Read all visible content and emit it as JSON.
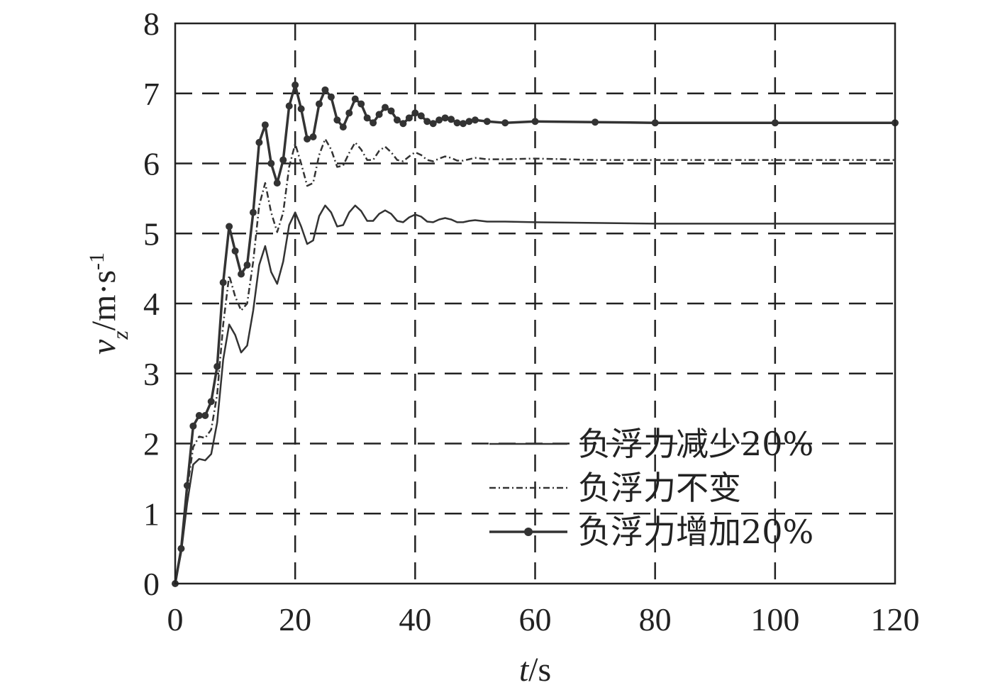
{
  "chart_data": {
    "type": "line",
    "xlabel": {
      "var": "t",
      "unit": "/s"
    },
    "ylabel": {
      "var": "v",
      "sub": "z",
      "unit": "/m·s",
      "sup": "-1"
    },
    "xlim": [
      0,
      120
    ],
    "ylim": [
      0,
      8
    ],
    "xticks": [
      0,
      20,
      40,
      60,
      80,
      100,
      120
    ],
    "yticks": [
      0,
      1,
      2,
      3,
      4,
      5,
      6,
      7,
      8
    ],
    "grid": true,
    "legend_position": "bottom-right",
    "color": "#333333",
    "series": [
      {
        "name": "负浮力减少20%",
        "style": "solid",
        "points": [
          [
            0,
            0
          ],
          [
            1,
            0.45
          ],
          [
            2,
            1.15
          ],
          [
            3,
            1.7
          ],
          [
            4,
            1.78
          ],
          [
            5,
            1.76
          ],
          [
            6,
            1.85
          ],
          [
            7,
            2.3
          ],
          [
            8,
            3.2
          ],
          [
            9,
            3.7
          ],
          [
            10,
            3.55
          ],
          [
            11,
            3.3
          ],
          [
            12,
            3.4
          ],
          [
            13,
            3.9
          ],
          [
            14,
            4.55
          ],
          [
            15,
            4.82
          ],
          [
            16,
            4.45
          ],
          [
            17,
            4.28
          ],
          [
            18,
            4.6
          ],
          [
            19,
            5.12
          ],
          [
            20,
            5.3
          ],
          [
            21,
            5.1
          ],
          [
            22,
            4.85
          ],
          [
            23,
            4.9
          ],
          [
            24,
            5.25
          ],
          [
            25,
            5.4
          ],
          [
            26,
            5.3
          ],
          [
            27,
            5.1
          ],
          [
            28,
            5.12
          ],
          [
            29,
            5.3
          ],
          [
            30,
            5.4
          ],
          [
            31,
            5.32
          ],
          [
            32,
            5.18
          ],
          [
            33,
            5.18
          ],
          [
            34,
            5.28
          ],
          [
            35,
            5.33
          ],
          [
            36,
            5.28
          ],
          [
            37,
            5.18
          ],
          [
            38,
            5.16
          ],
          [
            39,
            5.23
          ],
          [
            40,
            5.27
          ],
          [
            41,
            5.24
          ],
          [
            42,
            5.17
          ],
          [
            43,
            5.16
          ],
          [
            44,
            5.2
          ],
          [
            45,
            5.22
          ],
          [
            46,
            5.2
          ],
          [
            47,
            5.16
          ],
          [
            48,
            5.16
          ],
          [
            49,
            5.18
          ],
          [
            50,
            5.19
          ],
          [
            52,
            5.17
          ],
          [
            55,
            5.17
          ],
          [
            60,
            5.16
          ],
          [
            70,
            5.15
          ],
          [
            80,
            5.14
          ],
          [
            100,
            5.14
          ],
          [
            120,
            5.14
          ]
        ]
      },
      {
        "name": "负浮力不变",
        "style": "dash-dot",
        "points": [
          [
            0,
            0
          ],
          [
            1,
            0.5
          ],
          [
            2,
            1.35
          ],
          [
            3,
            1.95
          ],
          [
            4,
            2.1
          ],
          [
            5,
            2.08
          ],
          [
            6,
            2.2
          ],
          [
            7,
            2.7
          ],
          [
            8,
            3.7
          ],
          [
            9,
            4.4
          ],
          [
            10,
            4.1
          ],
          [
            11,
            3.9
          ],
          [
            12,
            4.0
          ],
          [
            13,
            4.6
          ],
          [
            14,
            5.4
          ],
          [
            15,
            5.72
          ],
          [
            16,
            5.3
          ],
          [
            17,
            5.02
          ],
          [
            18,
            5.3
          ],
          [
            19,
            5.95
          ],
          [
            20,
            6.28
          ],
          [
            21,
            6.0
          ],
          [
            22,
            5.68
          ],
          [
            23,
            5.72
          ],
          [
            24,
            6.12
          ],
          [
            25,
            6.35
          ],
          [
            26,
            6.2
          ],
          [
            27,
            5.95
          ],
          [
            28,
            5.97
          ],
          [
            29,
            6.15
          ],
          [
            30,
            6.3
          ],
          [
            31,
            6.2
          ],
          [
            32,
            6.05
          ],
          [
            33,
            6.05
          ],
          [
            34,
            6.18
          ],
          [
            35,
            6.24
          ],
          [
            36,
            6.16
          ],
          [
            37,
            6.05
          ],
          [
            38,
            6.03
          ],
          [
            39,
            6.1
          ],
          [
            40,
            6.16
          ],
          [
            41,
            6.12
          ],
          [
            42,
            6.05
          ],
          [
            43,
            6.03
          ],
          [
            44,
            6.07
          ],
          [
            45,
            6.1
          ],
          [
            46,
            6.08
          ],
          [
            47,
            6.04
          ],
          [
            48,
            6.04
          ],
          [
            49,
            6.06
          ],
          [
            50,
            6.08
          ],
          [
            52,
            6.06
          ],
          [
            55,
            6.06
          ],
          [
            60,
            6.07
          ],
          [
            70,
            6.05
          ],
          [
            80,
            6.05
          ],
          [
            100,
            6.05
          ],
          [
            120,
            6.05
          ]
        ]
      },
      {
        "name": "负浮力增加20%",
        "style": "solid-dots",
        "points": [
          [
            0,
            0
          ],
          [
            1,
            0.5
          ],
          [
            2,
            1.4
          ],
          [
            3,
            2.25
          ],
          [
            4,
            2.4
          ],
          [
            5,
            2.4
          ],
          [
            6,
            2.6
          ],
          [
            7,
            3.1
          ],
          [
            8,
            4.3
          ],
          [
            9,
            5.1
          ],
          [
            10,
            4.75
          ],
          [
            11,
            4.42
          ],
          [
            12,
            4.55
          ],
          [
            13,
            5.3
          ],
          [
            14,
            6.3
          ],
          [
            15,
            6.55
          ],
          [
            16,
            6.0
          ],
          [
            17,
            5.72
          ],
          [
            18,
            6.05
          ],
          [
            19,
            6.82
          ],
          [
            20,
            7.12
          ],
          [
            21,
            6.78
          ],
          [
            22,
            6.35
          ],
          [
            23,
            6.38
          ],
          [
            24,
            6.85
          ],
          [
            25,
            7.05
          ],
          [
            26,
            6.95
          ],
          [
            27,
            6.62
          ],
          [
            28,
            6.52
          ],
          [
            29,
            6.72
          ],
          [
            30,
            6.92
          ],
          [
            31,
            6.85
          ],
          [
            32,
            6.65
          ],
          [
            33,
            6.58
          ],
          [
            34,
            6.7
          ],
          [
            35,
            6.8
          ],
          [
            36,
            6.75
          ],
          [
            37,
            6.62
          ],
          [
            38,
            6.57
          ],
          [
            39,
            6.65
          ],
          [
            40,
            6.72
          ],
          [
            41,
            6.68
          ],
          [
            42,
            6.6
          ],
          [
            43,
            6.57
          ],
          [
            44,
            6.62
          ],
          [
            45,
            6.65
          ],
          [
            46,
            6.63
          ],
          [
            47,
            6.58
          ],
          [
            48,
            6.57
          ],
          [
            49,
            6.6
          ],
          [
            50,
            6.62
          ],
          [
            52,
            6.6
          ],
          [
            55,
            6.58
          ],
          [
            60,
            6.6
          ],
          [
            70,
            6.59
          ],
          [
            80,
            6.58
          ],
          [
            100,
            6.58
          ],
          [
            120,
            6.58
          ]
        ]
      }
    ]
  }
}
